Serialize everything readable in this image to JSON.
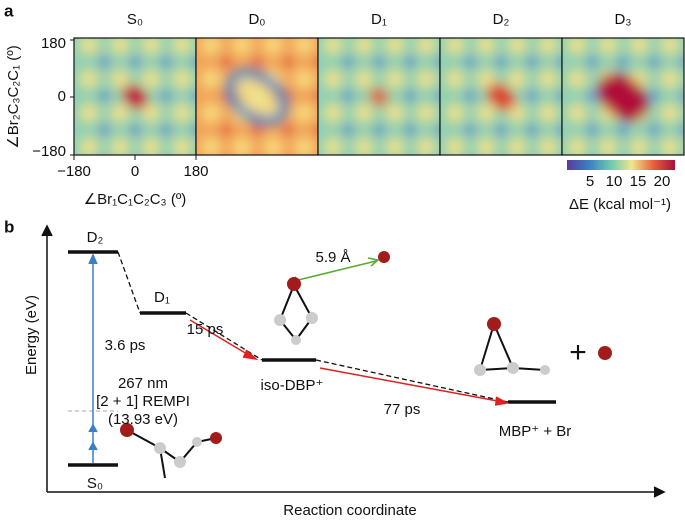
{
  "panel_a": {
    "label": "a",
    "panels": [
      "S₀",
      "D₀",
      "D₁",
      "D₂",
      "D₃"
    ],
    "y_axis": {
      "label": "∠Br₂C₃C₂C₁ (º)",
      "ticks": [
        "180",
        "0",
        "−180"
      ]
    },
    "x_axis": {
      "label": "∠Br₁C₁C₂C₃ (º)",
      "ticks": [
        "−180",
        "0",
        "180"
      ]
    },
    "colorbar": {
      "ticks": [
        "5",
        "10",
        "15",
        "20"
      ],
      "label": "ΔE (kcal mol⁻¹)"
    }
  },
  "panel_b": {
    "label": "b",
    "y_axis_label": "Energy (eV)",
    "x_axis_label": "Reaction coordinate",
    "states": {
      "d2": "D₂",
      "d1": "D₁",
      "s0": "S₀",
      "iso": "iso-DBP⁺",
      "mbp": "MBP⁺ + Br"
    },
    "annotations": {
      "t1": "3.6 ps",
      "t2": "15 ps",
      "t3": "77 ps",
      "dist": "5.9 Å",
      "wl": "267 nm",
      "rempi": "[2 + 1] REMPI",
      "ev": "(13.93 eV)",
      "plus": "+"
    }
  }
}
